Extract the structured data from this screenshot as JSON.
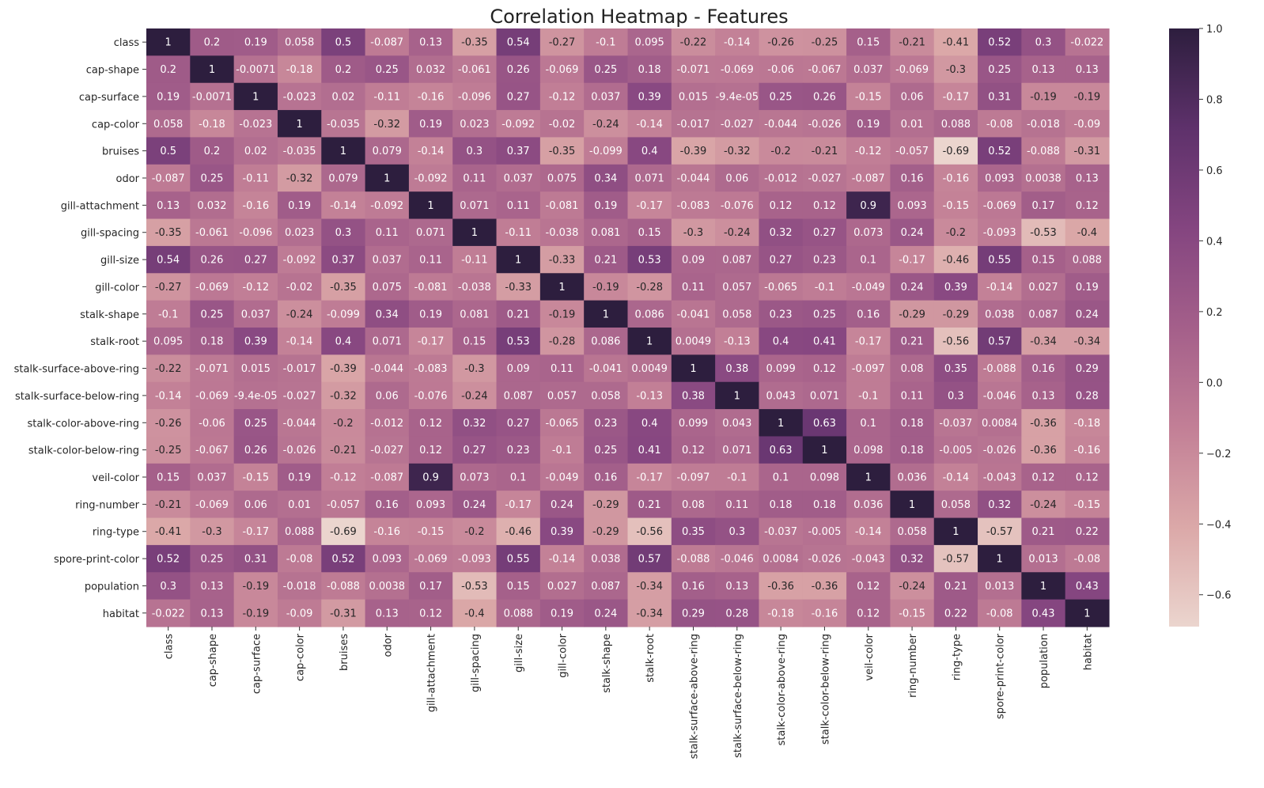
{
  "chart_data": {
    "type": "heatmap",
    "title": "Correlation Heatmap - Features",
    "xlabel": "",
    "ylabel": "",
    "labels": [
      "class",
      "cap-shape",
      "cap-surface",
      "cap-color",
      "bruises",
      "odor",
      "gill-attachment",
      "gill-spacing",
      "gill-size",
      "gill-color",
      "stalk-shape",
      "stalk-root",
      "stalk-surface-above-ring",
      "stalk-surface-below-ring",
      "stalk-color-above-ring",
      "stalk-color-below-ring",
      "veil-color",
      "ring-number",
      "ring-type",
      "spore-print-color",
      "population",
      "habitat"
    ],
    "cell_text": [
      [
        "1",
        "0.2",
        "0.19",
        "0.058",
        "0.5",
        "-0.087",
        "0.13",
        "-0.35",
        "0.54",
        "-0.27",
        "-0.1",
        "0.095",
        "-0.22",
        "-0.14",
        "-0.26",
        "-0.25",
        "0.15",
        "-0.21",
        "-0.41",
        "0.52",
        "0.3",
        "-0.022"
      ],
      [
        "0.2",
        "1",
        "-0.0071",
        "-0.18",
        "0.2",
        "0.25",
        "0.032",
        "-0.061",
        "0.26",
        "-0.069",
        "0.25",
        "0.18",
        "-0.071",
        "-0.069",
        "-0.06",
        "-0.067",
        "0.037",
        "-0.069",
        "-0.3",
        "0.25",
        "0.13",
        "0.13"
      ],
      [
        "0.19",
        "-0.0071",
        "1",
        "-0.023",
        "0.02",
        "-0.11",
        "-0.16",
        "-0.096",
        "0.27",
        "-0.12",
        "0.037",
        "0.39",
        "0.015",
        "-9.4e-05",
        "0.25",
        "0.26",
        "-0.15",
        "0.06",
        "-0.17",
        "0.31",
        "-0.19",
        "-0.19"
      ],
      [
        "0.058",
        "-0.18",
        "-0.023",
        "1",
        "-0.035",
        "-0.32",
        "0.19",
        "0.023",
        "-0.092",
        "-0.02",
        "-0.24",
        "-0.14",
        "-0.017",
        "-0.027",
        "-0.044",
        "-0.026",
        "0.19",
        "0.01",
        "0.088",
        "-0.08",
        "-0.018",
        "-0.09"
      ],
      [
        "0.5",
        "0.2",
        "0.02",
        "-0.035",
        "1",
        "0.079",
        "-0.14",
        "0.3",
        "0.37",
        "-0.35",
        "-0.099",
        "0.4",
        "-0.39",
        "-0.32",
        "-0.2",
        "-0.21",
        "-0.12",
        "-0.057",
        "-0.69",
        "0.52",
        "-0.088",
        "-0.31"
      ],
      [
        "-0.087",
        "0.25",
        "-0.11",
        "-0.32",
        "0.079",
        "1",
        "-0.092",
        "0.11",
        "0.037",
        "0.075",
        "0.34",
        "0.071",
        "-0.044",
        "0.06",
        "-0.012",
        "-0.027",
        "-0.087",
        "0.16",
        "-0.16",
        "0.093",
        "0.0038",
        "0.13"
      ],
      [
        "0.13",
        "0.032",
        "-0.16",
        "0.19",
        "-0.14",
        "-0.092",
        "1",
        "0.071",
        "0.11",
        "-0.081",
        "0.19",
        "-0.17",
        "-0.083",
        "-0.076",
        "0.12",
        "0.12",
        "0.9",
        "0.093",
        "-0.15",
        "-0.069",
        "0.17",
        "0.12"
      ],
      [
        "-0.35",
        "-0.061",
        "-0.096",
        "0.023",
        "0.3",
        "0.11",
        "0.071",
        "1",
        "-0.11",
        "-0.038",
        "0.081",
        "0.15",
        "-0.3",
        "-0.24",
        "0.32",
        "0.27",
        "0.073",
        "0.24",
        "-0.2",
        "-0.093",
        "-0.53",
        "-0.4"
      ],
      [
        "0.54",
        "0.26",
        "0.27",
        "-0.092",
        "0.37",
        "0.037",
        "0.11",
        "-0.11",
        "1",
        "-0.33",
        "0.21",
        "0.53",
        "0.09",
        "0.087",
        "0.27",
        "0.23",
        "0.1",
        "-0.17",
        "-0.46",
        "0.55",
        "0.15",
        "0.088"
      ],
      [
        "-0.27",
        "-0.069",
        "-0.12",
        "-0.02",
        "-0.35",
        "0.075",
        "-0.081",
        "-0.038",
        "-0.33",
        "1",
        "-0.19",
        "-0.28",
        "0.11",
        "0.057",
        "-0.065",
        "-0.1",
        "-0.049",
        "0.24",
        "0.39",
        "-0.14",
        "0.027",
        "0.19"
      ],
      [
        "-0.1",
        "0.25",
        "0.037",
        "-0.24",
        "-0.099",
        "0.34",
        "0.19",
        "0.081",
        "0.21",
        "-0.19",
        "1",
        "0.086",
        "-0.041",
        "0.058",
        "0.23",
        "0.25",
        "0.16",
        "-0.29",
        "-0.29",
        "0.038",
        "0.087",
        "0.24"
      ],
      [
        "0.095",
        "0.18",
        "0.39",
        "-0.14",
        "0.4",
        "0.071",
        "-0.17",
        "0.15",
        "0.53",
        "-0.28",
        "0.086",
        "1",
        "0.0049",
        "-0.13",
        "0.4",
        "0.41",
        "-0.17",
        "0.21",
        "-0.56",
        "0.57",
        "-0.34",
        "-0.34"
      ],
      [
        "-0.22",
        "-0.071",
        "0.015",
        "-0.017",
        "-0.39",
        "-0.044",
        "-0.083",
        "-0.3",
        "0.09",
        "0.11",
        "-0.041",
        "0.0049",
        "1",
        "0.38",
        "0.099",
        "0.12",
        "-0.097",
        "0.08",
        "0.35",
        "-0.088",
        "0.16",
        "0.29"
      ],
      [
        "-0.14",
        "-0.069",
        "-9.4e-05",
        "-0.027",
        "-0.32",
        "0.06",
        "-0.076",
        "-0.24",
        "0.087",
        "0.057",
        "0.058",
        "-0.13",
        "0.38",
        "1",
        "0.043",
        "0.071",
        "-0.1",
        "0.11",
        "0.3",
        "-0.046",
        "0.13",
        "0.28"
      ],
      [
        "-0.26",
        "-0.06",
        "0.25",
        "-0.044",
        "-0.2",
        "-0.012",
        "0.12",
        "0.32",
        "0.27",
        "-0.065",
        "0.23",
        "0.4",
        "0.099",
        "0.043",
        "1",
        "0.63",
        "0.1",
        "0.18",
        "-0.037",
        "0.0084",
        "-0.36",
        "-0.18"
      ],
      [
        "-0.25",
        "-0.067",
        "0.26",
        "-0.026",
        "-0.21",
        "-0.027",
        "0.12",
        "0.27",
        "0.23",
        "-0.1",
        "0.25",
        "0.41",
        "0.12",
        "0.071",
        "0.63",
        "1",
        "0.098",
        "0.18",
        "-0.005",
        "-0.026",
        "-0.36",
        "-0.16"
      ],
      [
        "0.15",
        "0.037",
        "-0.15",
        "0.19",
        "-0.12",
        "-0.087",
        "0.9",
        "0.073",
        "0.1",
        "-0.049",
        "0.16",
        "-0.17",
        "-0.097",
        "-0.1",
        "0.1",
        "0.098",
        "1",
        "0.036",
        "-0.14",
        "-0.043",
        "0.12",
        "0.12"
      ],
      [
        "-0.21",
        "-0.069",
        "0.06",
        "0.01",
        "-0.057",
        "0.16",
        "0.093",
        "0.24",
        "-0.17",
        "0.24",
        "-0.29",
        "0.21",
        "0.08",
        "0.11",
        "0.18",
        "0.18",
        "0.036",
        "1",
        "0.058",
        "0.32",
        "-0.24",
        "-0.15"
      ],
      [
        "-0.41",
        "-0.3",
        "-0.17",
        "0.088",
        "-0.69",
        "-0.16",
        "-0.15",
        "-0.2",
        "-0.46",
        "0.39",
        "-0.29",
        "-0.56",
        "0.35",
        "0.3",
        "-0.037",
        "-0.005",
        "-0.14",
        "0.058",
        "1",
        "-0.57",
        "0.21",
        "0.22"
      ],
      [
        "0.52",
        "0.25",
        "0.31",
        "-0.08",
        "0.52",
        "0.093",
        "-0.069",
        "-0.093",
        "0.55",
        "-0.14",
        "0.038",
        "0.57",
        "-0.088",
        "-0.046",
        "0.0084",
        "-0.026",
        "-0.043",
        "0.32",
        "-0.57",
        "1",
        "0.013",
        "-0.08"
      ],
      [
        "0.3",
        "0.13",
        "-0.19",
        "-0.018",
        "-0.088",
        "0.0038",
        "0.17",
        "-0.53",
        "0.15",
        "0.027",
        "0.087",
        "-0.34",
        "0.16",
        "0.13",
        "-0.36",
        "-0.36",
        "0.12",
        "-0.24",
        "0.21",
        "0.013",
        "1",
        "0.43"
      ],
      [
        "-0.022",
        "0.13",
        "-0.19",
        "-0.09",
        "-0.31",
        "0.13",
        "0.12",
        "-0.4",
        "0.088",
        "0.19",
        "0.24",
        "-0.34",
        "0.29",
        "0.28",
        "-0.18",
        "-0.16",
        "0.12",
        "-0.15",
        "0.22",
        "-0.08",
        "0.43",
        "1"
      ]
    ],
    "vmin": -0.69,
    "vmax": 1.0,
    "colorbar_ticks": [
      1.0,
      0.8,
      0.6,
      0.4,
      0.2,
      0.0,
      -0.2,
      -0.4,
      -0.6
    ],
    "colorbar_tick_labels": [
      "1.0",
      "0.8",
      "0.6",
      "0.4",
      "0.2",
      "0.0",
      "−0.2",
      "−0.4",
      "−0.6"
    ],
    "colormap_stops": [
      "#ebd5ce",
      "#dba8a8",
      "#c27f96",
      "#a45f8a",
      "#844580",
      "#5e316b",
      "#2d1e3e"
    ],
    "legend": "colorbar-right"
  }
}
